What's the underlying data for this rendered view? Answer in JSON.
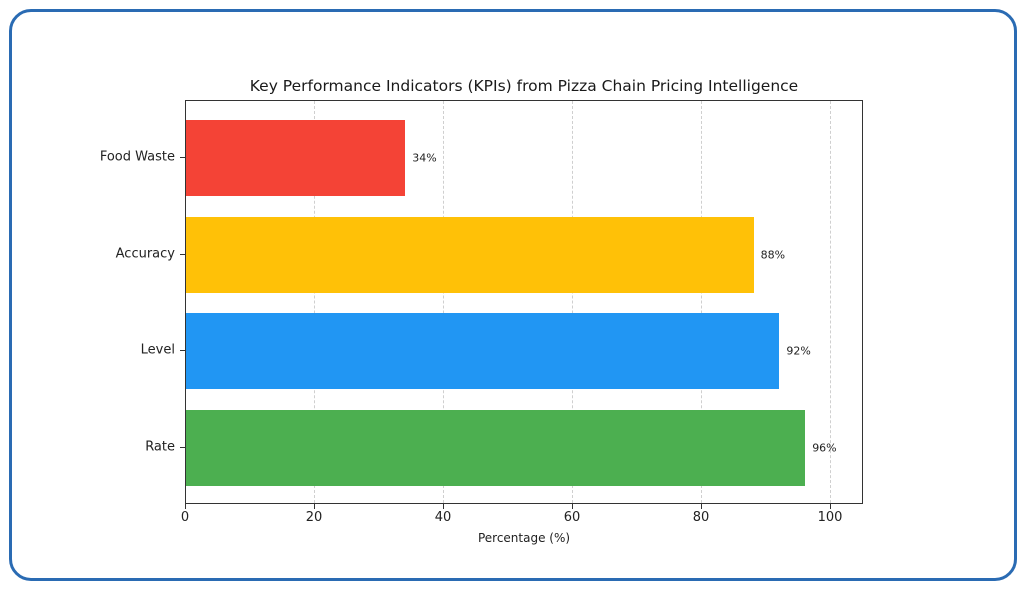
{
  "chart_data": {
    "type": "bar",
    "orientation": "horizontal",
    "title": "Key Performance Indicators (KPIs) from Pizza Chain Pricing Intelligence",
    "xlabel": "Percentage (%)",
    "ylabel": "",
    "categories": [
      "Food Waste",
      "Accuracy",
      "Level",
      "Rate"
    ],
    "values": [
      34,
      88,
      92,
      96
    ],
    "value_labels": [
      "34%",
      "88%",
      "92%",
      "96%"
    ],
    "colors": [
      "#f44336",
      "#ffc107",
      "#2196f3",
      "#4caf50"
    ],
    "xlim": [
      0,
      105
    ],
    "xticks": [
      0,
      20,
      40,
      60,
      80,
      100
    ],
    "xtick_labels": [
      "0",
      "20",
      "40",
      "60",
      "80",
      "100"
    ],
    "grid": {
      "x": true,
      "style": "dashed"
    },
    "legend": null
  },
  "frame": {
    "border_color": "#2a6bb3"
  }
}
